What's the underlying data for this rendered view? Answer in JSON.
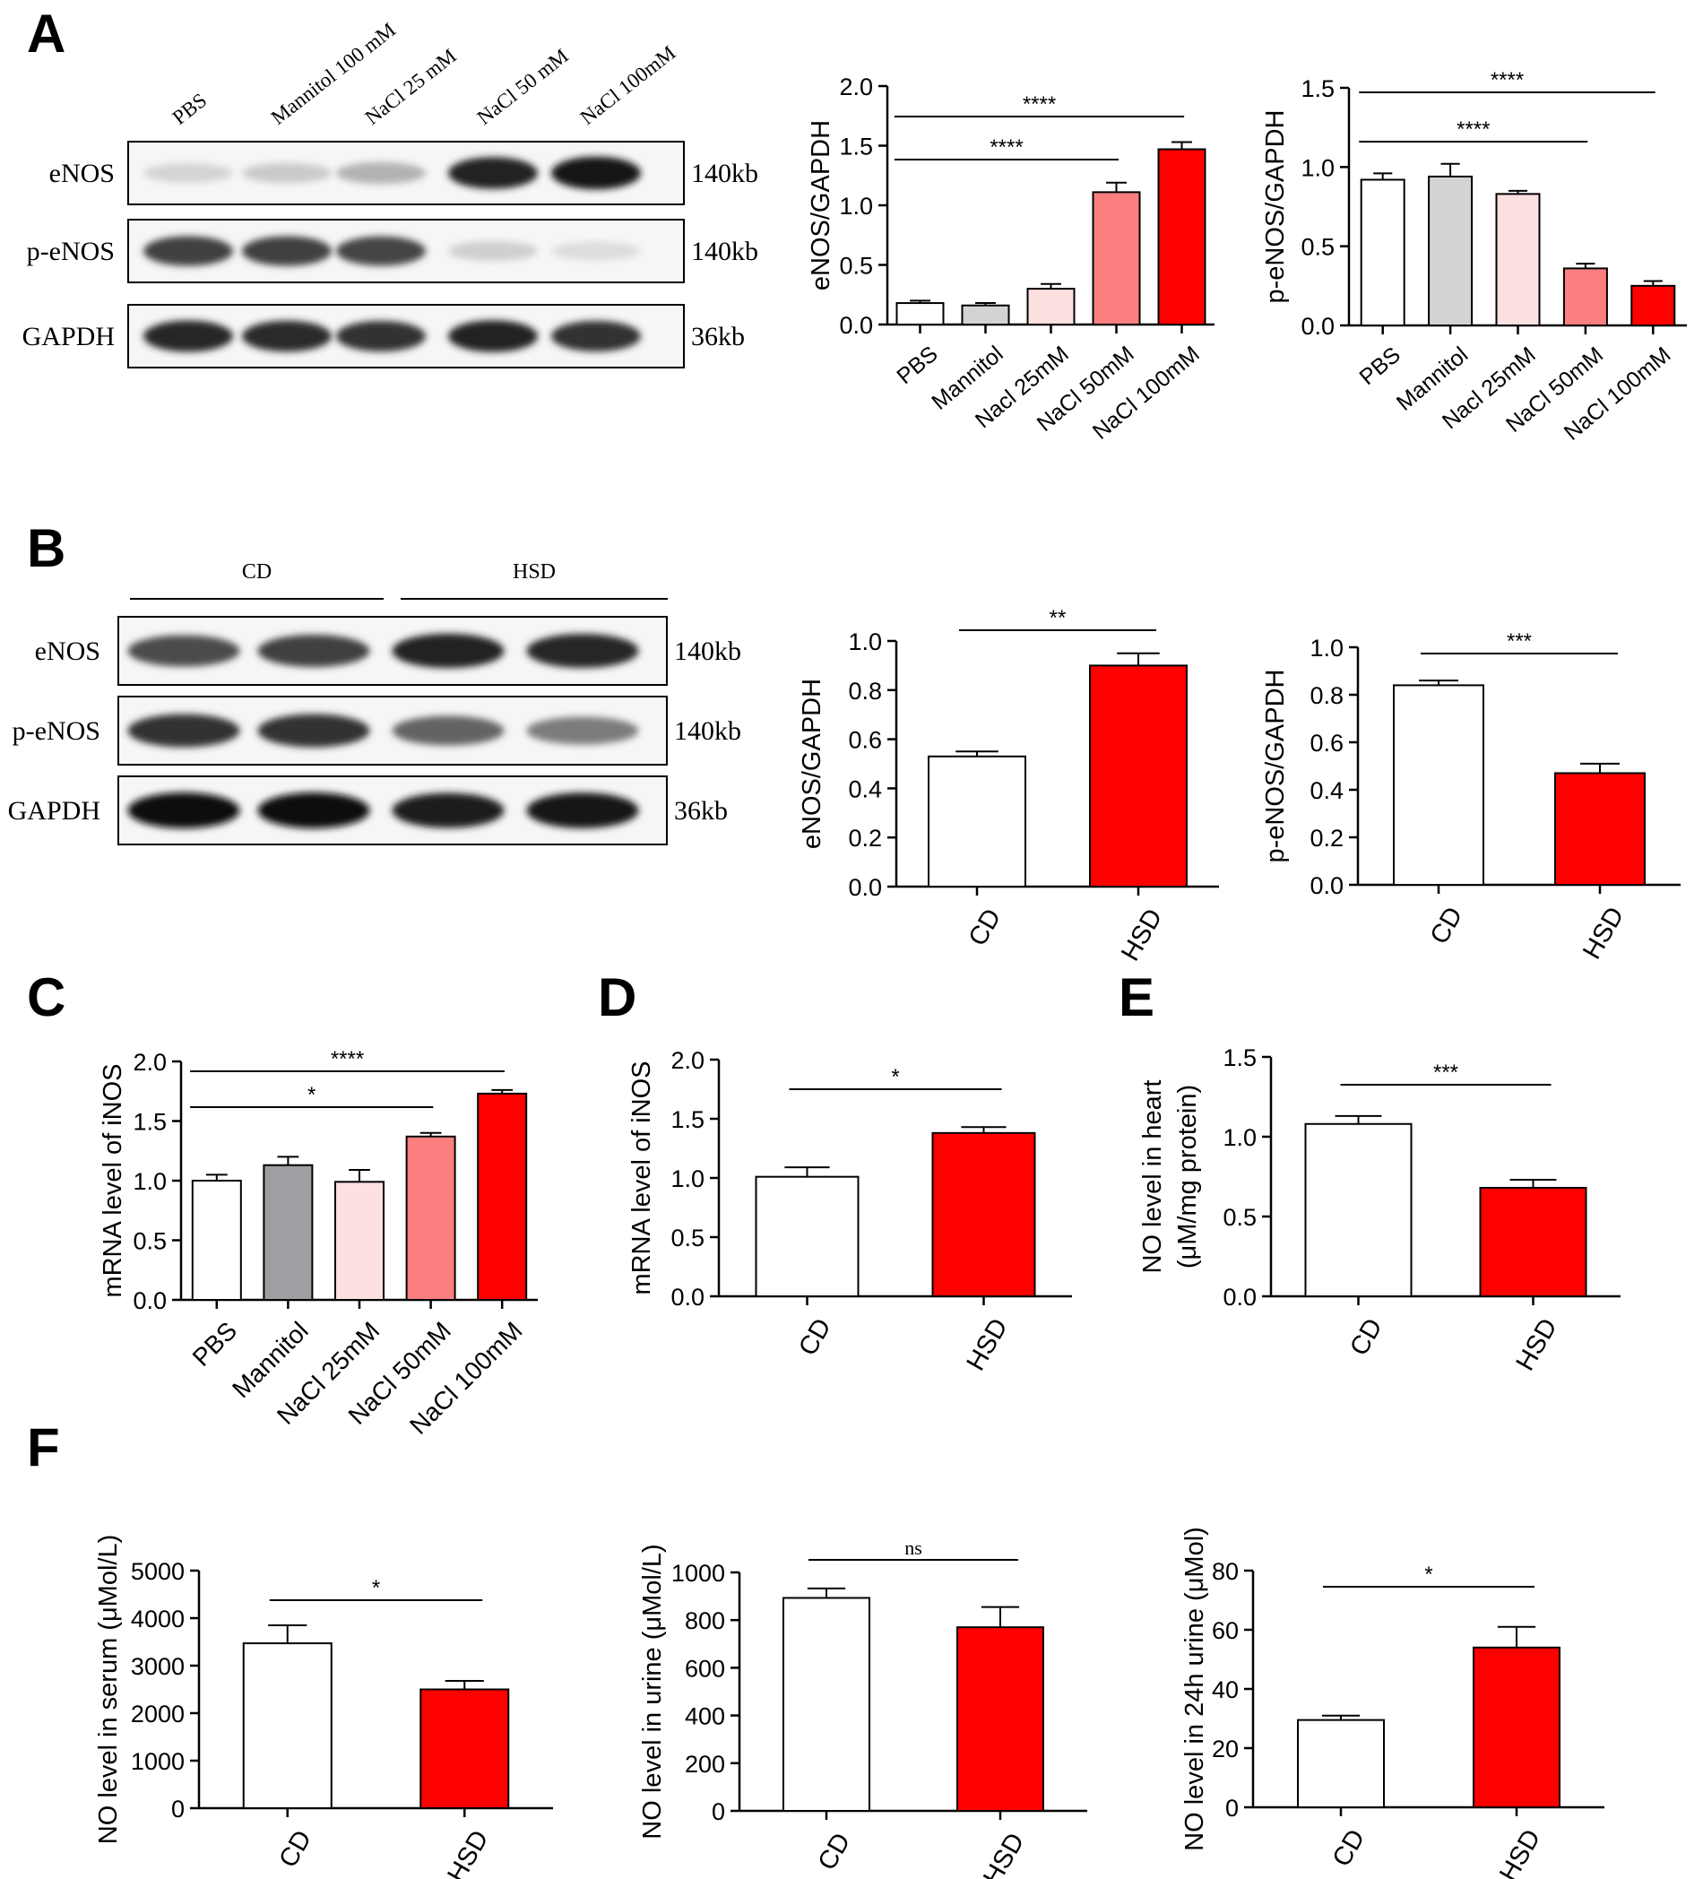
{
  "panel_letters": [
    "A",
    "B",
    "C",
    "D",
    "E",
    "F"
  ],
  "blot_A": {
    "lanes": [
      "PBS",
      "Mannitol 100 mM",
      "NaCl 25 mM",
      "NaCl 50 mM",
      "NaCl 100mM"
    ],
    "rows": [
      {
        "label": "eNOS",
        "size": "140kb",
        "intensity": [
          0.18,
          0.22,
          0.32,
          0.92,
          0.98
        ]
      },
      {
        "label": "p-eNOS",
        "size": "140kb",
        "intensity": [
          0.8,
          0.8,
          0.78,
          0.2,
          0.14
        ]
      },
      {
        "label": "GAPDH",
        "size": "36kb",
        "intensity": [
          0.9,
          0.88,
          0.86,
          0.92,
          0.86
        ]
      }
    ]
  },
  "blot_B": {
    "groups": [
      "CD",
      "HSD"
    ],
    "rows": [
      {
        "label": "eNOS",
        "size": "140kb",
        "intensity": [
          0.75,
          0.8,
          0.92,
          0.9
        ]
      },
      {
        "label": "p-eNOS",
        "size": "140kb",
        "intensity": [
          0.85,
          0.85,
          0.65,
          0.55
        ]
      },
      {
        "label": "GAPDH",
        "size": "36kb",
        "intensity": [
          1,
          1,
          0.95,
          0.98
        ]
      }
    ]
  },
  "colors": {
    "white": "#ffffff",
    "gray": "#d3d3d3",
    "dark_gray": "#9e9ea3",
    "light_pink": "#fde0e0",
    "salmon": "#fb7f7f",
    "red": "#fe0000"
  },
  "chart_data": [
    {
      "id": "A-eNOS",
      "type": "bar",
      "categories": [
        "PBS",
        "Mannitol",
        "Nacl 25mM",
        "NaCl 50mM",
        "NaCl 100mM"
      ],
      "values": [
        0.18,
        0.16,
        0.3,
        1.11,
        1.47
      ],
      "errors": [
        0.02,
        0.02,
        0.04,
        0.08,
        0.06
      ],
      "ylabel": "eNOS/GAPDH",
      "ylim": [
        0,
        2.0
      ],
      "yticks": [
        "0.0",
        "0.5",
        "1.0",
        "1.5",
        "2.0"
      ],
      "colors": [
        "#ffffff",
        "#d3d3d3",
        "#fde0e0",
        "#fb7f7f",
        "#fe0000"
      ],
      "significance": [
        {
          "from": 0,
          "to": 3,
          "label": "****"
        },
        {
          "from": 0,
          "to": 4,
          "label": "****"
        }
      ]
    },
    {
      "id": "A-peNOS",
      "type": "bar",
      "categories": [
        "PBS",
        "Mannitol",
        "Nacl 25mM",
        "NaCl 50mM",
        "NaCl 100mM"
      ],
      "values": [
        0.92,
        0.94,
        0.83,
        0.36,
        0.25
      ],
      "errors": [
        0.04,
        0.08,
        0.02,
        0.03,
        0.03
      ],
      "ylabel": "p-eNOS/GAPDH",
      "ylim": [
        0,
        1.5
      ],
      "yticks": [
        "0.0",
        "0.5",
        "1.0",
        "1.5"
      ],
      "colors": [
        "#ffffff",
        "#d3d3d3",
        "#fde0e0",
        "#fb7f7f",
        "#fe0000"
      ],
      "significance": [
        {
          "from": 0,
          "to": 3,
          "label": "****"
        },
        {
          "from": 0,
          "to": 4,
          "label": "****"
        }
      ]
    },
    {
      "id": "B-eNOS",
      "type": "bar",
      "categories": [
        "CD",
        "HSD"
      ],
      "values": [
        0.53,
        0.9
      ],
      "errors": [
        0.02,
        0.05
      ],
      "ylabel": "eNOS/GAPDH",
      "ylim": [
        0,
        1.0
      ],
      "yticks": [
        "0.0",
        "0.2",
        "0.4",
        "0.6",
        "0.8",
        "1.0"
      ],
      "colors": [
        "#ffffff",
        "#fe0000"
      ],
      "significance": [
        {
          "from": 0,
          "to": 1,
          "label": "**"
        }
      ]
    },
    {
      "id": "B-peNOS",
      "type": "bar",
      "categories": [
        "CD",
        "HSD"
      ],
      "values": [
        0.84,
        0.47
      ],
      "errors": [
        0.02,
        0.04
      ],
      "ylabel": "p-eNOS/GAPDH",
      "ylim": [
        0,
        1.0
      ],
      "yticks": [
        "0.0",
        "0.2",
        "0.4",
        "0.6",
        "0.8",
        "1.0"
      ],
      "colors": [
        "#ffffff",
        "#fe0000"
      ],
      "significance": [
        {
          "from": 0,
          "to": 1,
          "label": "***"
        }
      ]
    },
    {
      "id": "C",
      "type": "bar",
      "categories": [
        "PBS",
        "Mannitol",
        "NaCl 25mM",
        "NaCl 50mM",
        "NaCl 100mM"
      ],
      "values": [
        1.0,
        1.13,
        0.99,
        1.37,
        1.73
      ],
      "errors": [
        0.05,
        0.07,
        0.1,
        0.03,
        0.03
      ],
      "ylabel": "mRNA level of iNOS",
      "ylim": [
        0,
        2.0
      ],
      "yticks": [
        "0.0",
        "0.5",
        "1.0",
        "1.5",
        "2.0"
      ],
      "colors": [
        "#ffffff",
        "#9e9ea3",
        "#fde0e0",
        "#fb7f7f",
        "#fe0000"
      ],
      "significance": [
        {
          "from": 0,
          "to": 3,
          "label": "*"
        },
        {
          "from": 0,
          "to": 4,
          "label": "****"
        }
      ]
    },
    {
      "id": "D",
      "type": "bar",
      "categories": [
        "CD",
        "HSD"
      ],
      "values": [
        1.01,
        1.38
      ],
      "errors": [
        0.08,
        0.05
      ],
      "ylabel": "mRNA level of iNOS",
      "ylim": [
        0,
        2.0
      ],
      "yticks": [
        "0.0",
        "0.5",
        "1.0",
        "1.5",
        "2.0"
      ],
      "colors": [
        "#ffffff",
        "#fe0000"
      ],
      "significance": [
        {
          "from": 0,
          "to": 1,
          "label": "*"
        }
      ]
    },
    {
      "id": "E",
      "type": "bar",
      "categories": [
        "CD",
        "HSD"
      ],
      "values": [
        1.08,
        0.68
      ],
      "errors": [
        0.05,
        0.05
      ],
      "ylabel": "NO level in heart",
      "ylabel2": "(μM/mg protein)",
      "ylim": [
        0,
        1.5
      ],
      "yticks": [
        "0.0",
        "0.5",
        "1.0",
        "1.5"
      ],
      "colors": [
        "#ffffff",
        "#fe0000"
      ],
      "significance": [
        {
          "from": 0,
          "to": 1,
          "label": "***"
        }
      ]
    },
    {
      "id": "F-serum",
      "type": "bar",
      "categories": [
        "CD",
        "HSD"
      ],
      "values": [
        3470,
        2500
      ],
      "errors": [
        380,
        180
      ],
      "ylabel": "NO level in serum (μMol/L)",
      "ylim": [
        0,
        5000
      ],
      "yticks": [
        "0",
        "1000",
        "2000",
        "3000",
        "4000",
        "5000"
      ],
      "colors": [
        "#ffffff",
        "#fe0000"
      ],
      "significance": [
        {
          "from": 0,
          "to": 1,
          "label": "*"
        }
      ]
    },
    {
      "id": "F-urine",
      "type": "bar",
      "categories": [
        "CD",
        "HSD"
      ],
      "values": [
        893,
        770
      ],
      "errors": [
        40,
        85
      ],
      "ylabel": "NO level in urine (μMol/L)",
      "ylim": [
        0,
        1000
      ],
      "yticks": [
        "0",
        "200",
        "400",
        "600",
        "800",
        "1000"
      ],
      "colors": [
        "#ffffff",
        "#fe0000"
      ],
      "significance": [
        {
          "from": 0,
          "to": 1,
          "label": "ns"
        }
      ]
    },
    {
      "id": "F-24h",
      "type": "bar",
      "categories": [
        "CD",
        "HSD"
      ],
      "values": [
        29.5,
        54
      ],
      "errors": [
        1.5,
        7
      ],
      "ylabel": "NO level in 24h urine (μMol)",
      "ylim": [
        0,
        80
      ],
      "yticks": [
        "0",
        "20",
        "40",
        "60",
        "80"
      ],
      "colors": [
        "#ffffff",
        "#fe0000"
      ],
      "significance": [
        {
          "from": 0,
          "to": 1,
          "label": "*"
        }
      ]
    }
  ]
}
